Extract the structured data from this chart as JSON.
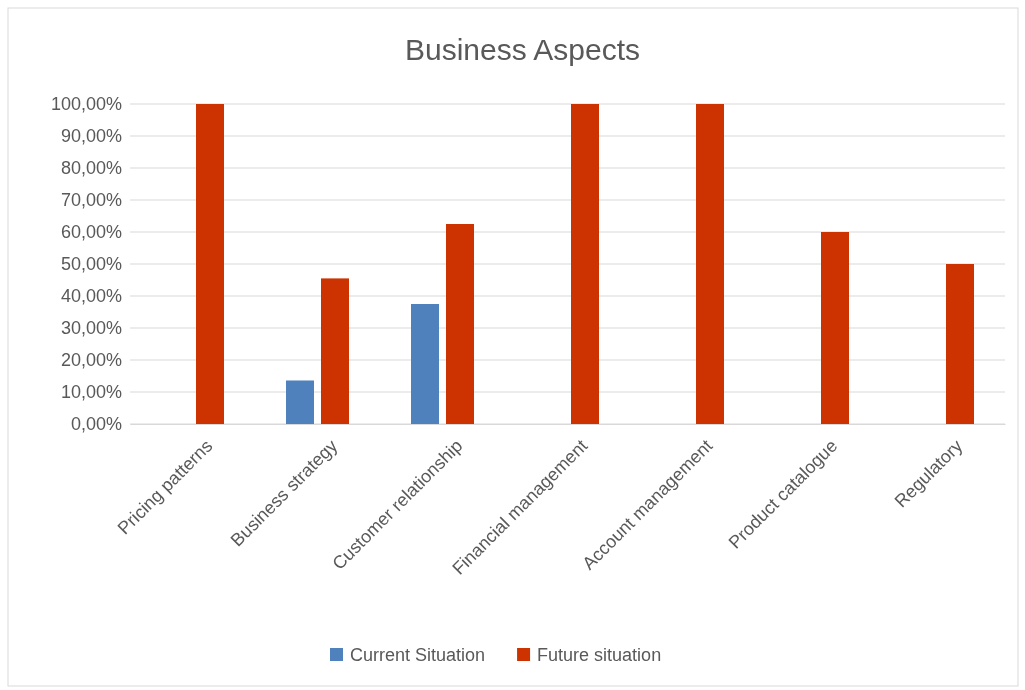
{
  "chart_data": {
    "type": "bar",
    "title": "Business Aspects",
    "categories": [
      "Pricing patterns",
      "Business strategy",
      "Customer relationship",
      "Financial management",
      "Account management",
      "Product catalogue",
      "Regulatory"
    ],
    "series": [
      {
        "name": "Current Situation",
        "color": "#4f81bd",
        "values": [
          null,
          13.6,
          37.5,
          null,
          null,
          null,
          null
        ]
      },
      {
        "name": "Future situation",
        "color": "#cc3300",
        "values": [
          100,
          45.5,
          62.5,
          100,
          100,
          60,
          50
        ]
      }
    ],
    "ylim": [
      0,
      100
    ],
    "yticks": [
      {
        "value": 0,
        "label": "0,00%"
      },
      {
        "value": 10,
        "label": "10,00%"
      },
      {
        "value": 20,
        "label": "20,00%"
      },
      {
        "value": 30,
        "label": "30,00%"
      },
      {
        "value": 40,
        "label": "40,00%"
      },
      {
        "value": 50,
        "label": "50,00%"
      },
      {
        "value": 60,
        "label": "60,00%"
      },
      {
        "value": 70,
        "label": "70,00%"
      },
      {
        "value": 80,
        "label": "80,00%"
      },
      {
        "value": 90,
        "label": "90,00%"
      },
      {
        "value": 100,
        "label": "100,00%"
      }
    ],
    "grid": "y",
    "legend": "bottom"
  }
}
